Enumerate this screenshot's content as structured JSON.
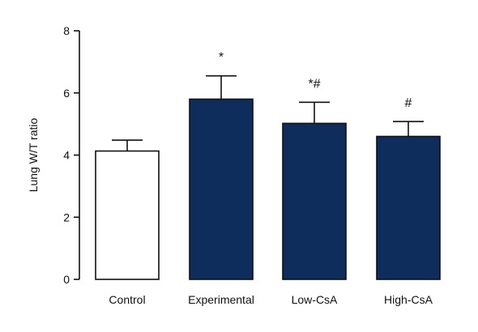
{
  "chart_data": {
    "type": "bar",
    "ylabel": "Lung W/T ratio",
    "xlabel": "",
    "ylim": [
      0,
      8
    ],
    "yticks": [
      0,
      2,
      4,
      6,
      8
    ],
    "categories": [
      "Control",
      "Experimental",
      "Low-CsA",
      "High-CsA"
    ],
    "values": [
      4.13,
      5.8,
      5.02,
      4.6
    ],
    "errors": [
      0.35,
      0.75,
      0.68,
      0.48
    ],
    "significance": [
      "",
      "*",
      "*#",
      "#"
    ],
    "bar_colors": [
      "#ffffff",
      "#0f2d5c",
      "#0f2d5c",
      "#0f2d5c"
    ],
    "grid": false,
    "legend": "none"
  }
}
